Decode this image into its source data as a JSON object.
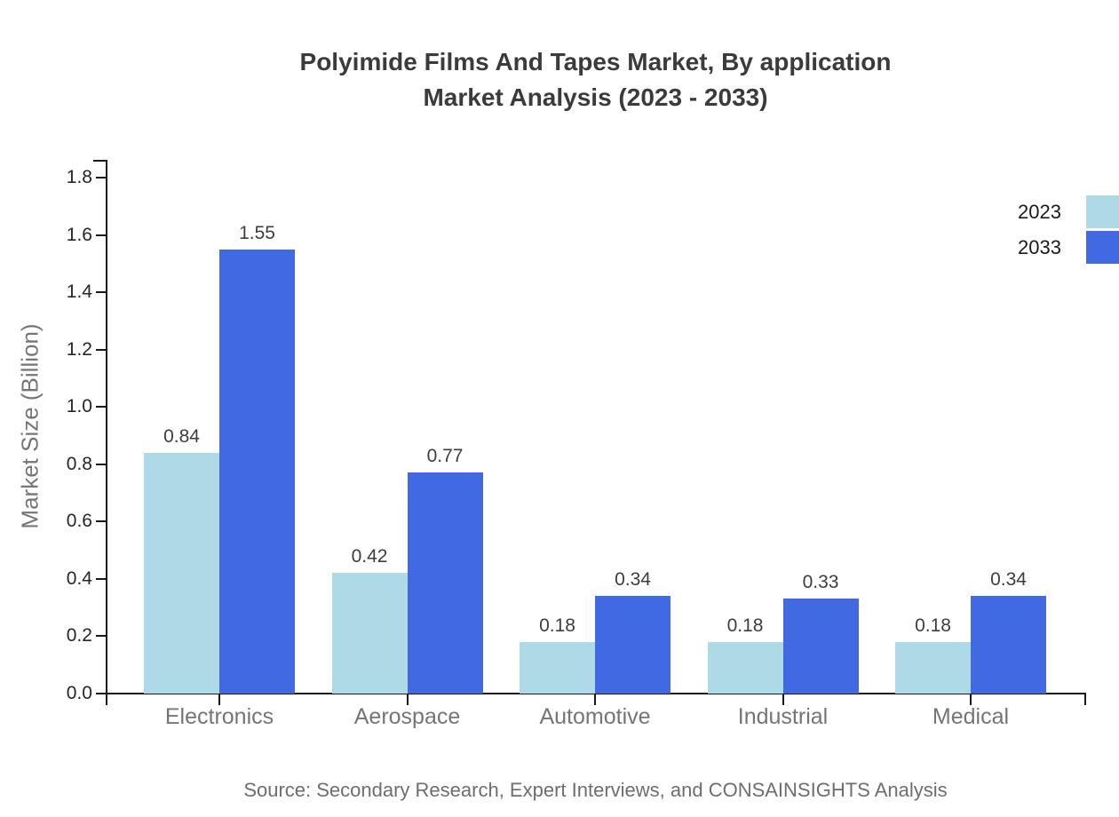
{
  "title": {
    "line1": "Polyimide Films And Tapes Market, By application",
    "line2": "Market Analysis (2023 - 2033)"
  },
  "axes": {
    "y_label": "Market Size (Billion)",
    "y_ticks": [
      "0.0",
      "0.2",
      "0.4",
      "0.6",
      "0.8",
      "1.0",
      "1.2",
      "1.4",
      "1.6",
      "1.8"
    ]
  },
  "legend": {
    "items": [
      {
        "label": "2023",
        "color": "#aed9e6"
      },
      {
        "label": "2033",
        "color": "#4169e1"
      }
    ]
  },
  "source": {
    "text": "Source: Secondary Research, Expert Interviews, and CONSAINSIGHTS Analysis"
  },
  "chart_data": {
    "type": "bar",
    "title": "Polyimide Films And Tapes Market, By application Market Analysis (2023 - 2033)",
    "categories": [
      "Electronics",
      "Aerospace",
      "Automotive",
      "Industrial",
      "Medical"
    ],
    "series": [
      {
        "name": "2023",
        "color": "#aed9e6",
        "values": [
          0.84,
          0.42,
          0.18,
          0.18,
          0.18
        ]
      },
      {
        "name": "2033",
        "color": "#4169e1",
        "values": [
          1.55,
          0.77,
          0.34,
          0.33,
          0.34
        ]
      }
    ],
    "data_labels": [
      "0.84",
      "1.55",
      "0.42",
      "0.77",
      "0.18",
      "0.34",
      "0.18",
      "0.33",
      "0.18",
      "0.34"
    ],
    "xlabel": "",
    "ylabel": "Market Size (Billion)",
    "ylim": [
      0,
      1.8
    ],
    "ytick_step": 0.2,
    "grid": false,
    "legend_position": "top-right",
    "show_data_labels": true
  }
}
